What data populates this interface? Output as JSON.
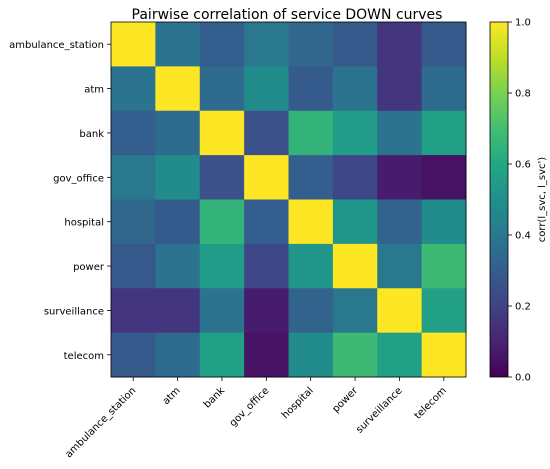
{
  "chart_data": {
    "type": "heatmap",
    "title": "Pairwise correlation of service DOWN curves",
    "xlabel": "",
    "ylabel": "",
    "row_labels": [
      "ambulance_station",
      "atm",
      "bank",
      "gov_office",
      "hospital",
      "power",
      "surveillance",
      "telecom"
    ],
    "col_labels": [
      "ambulance_station",
      "atm",
      "bank",
      "gov_office",
      "hospital",
      "power",
      "surveillance",
      "telecom"
    ],
    "values": [
      [
        1.0,
        0.38,
        0.3,
        0.4,
        0.33,
        0.28,
        0.16,
        0.28
      ],
      [
        0.38,
        1.0,
        0.35,
        0.48,
        0.29,
        0.38,
        0.16,
        0.35
      ],
      [
        0.3,
        0.35,
        1.0,
        0.25,
        0.65,
        0.55,
        0.38,
        0.57
      ],
      [
        0.4,
        0.48,
        0.25,
        1.0,
        0.3,
        0.22,
        0.08,
        0.05
      ],
      [
        0.33,
        0.29,
        0.65,
        0.3,
        1.0,
        0.52,
        0.32,
        0.48
      ],
      [
        0.28,
        0.38,
        0.55,
        0.22,
        0.52,
        1.0,
        0.4,
        0.68
      ],
      [
        0.16,
        0.16,
        0.38,
        0.08,
        0.32,
        0.4,
        1.0,
        0.57
      ],
      [
        0.28,
        0.35,
        0.57,
        0.05,
        0.48,
        0.68,
        0.57,
        1.0
      ]
    ],
    "vmin": 0.0,
    "vmax": 1.0,
    "colormap": "viridis",
    "colorbar": {
      "label": "corr(l_svc, l_svc')",
      "ticks": [
        0.0,
        0.2,
        0.4,
        0.6,
        0.8,
        1.0
      ],
      "tick_labels": [
        "0.0",
        "0.2",
        "0.4",
        "0.6",
        "0.8",
        "1.0"
      ]
    },
    "grid": false
  }
}
